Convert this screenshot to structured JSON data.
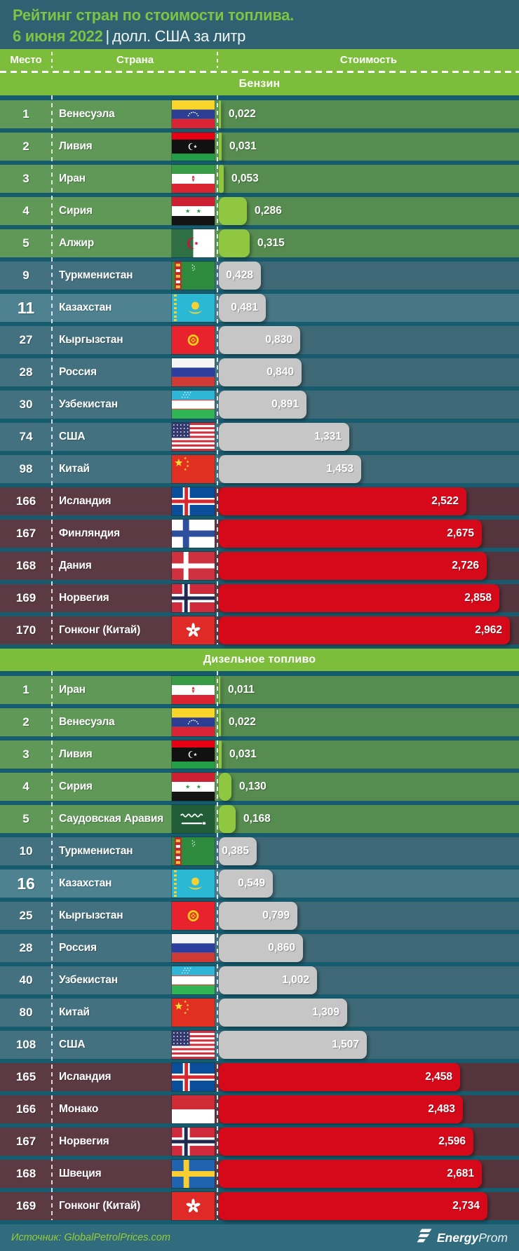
{
  "header": {
    "title": "Рейтинг стран по стоимости топлива.",
    "date": "6 июня 2022",
    "pipe": "|",
    "units": "долл. США за литр"
  },
  "columns": {
    "place": "Место",
    "country": "Страна",
    "value": "Стоимость"
  },
  "colors": {
    "accent_green": "#7CBE3C",
    "bar_green": "#8FC740",
    "bar_gray": "#C6C6C6",
    "bar_red": "#D5091A",
    "row_top": "#5F9857",
    "row_mid": "#44717F",
    "row_highlight": "#4E8290",
    "row_bottom": "#5C3A44",
    "background": "#175B6E",
    "title_bg": "#2F6173",
    "footer_bg": "#306C7E"
  },
  "sections": [
    {
      "title": "Бензин",
      "rows": [
        {
          "place": "1",
          "country": "Венесуэла",
          "flag": "ve",
          "value": "0,022",
          "num": 0.022,
          "tier": "top"
        },
        {
          "place": "2",
          "country": "Ливия",
          "flag": "ly",
          "value": "0,031",
          "num": 0.031,
          "tier": "top"
        },
        {
          "place": "3",
          "country": "Иран",
          "flag": "ir",
          "value": "0,053",
          "num": 0.053,
          "tier": "top"
        },
        {
          "place": "4",
          "country": "Сирия",
          "flag": "sy",
          "value": "0,286",
          "num": 0.286,
          "tier": "top"
        },
        {
          "place": "5",
          "country": "Алжир",
          "flag": "dz",
          "value": "0,315",
          "num": 0.315,
          "tier": "top"
        },
        {
          "place": "9",
          "country": "Туркменистан",
          "flag": "tm",
          "value": "0,428",
          "num": 0.428,
          "tier": "mid"
        },
        {
          "place": "11",
          "country": "Казахстан",
          "flag": "kz",
          "value": "0,481",
          "num": 0.481,
          "tier": "highlight"
        },
        {
          "place": "27",
          "country": "Кыргызстан",
          "flag": "kg",
          "value": "0,830",
          "num": 0.83,
          "tier": "mid"
        },
        {
          "place": "28",
          "country": "Россия",
          "flag": "ru",
          "value": "0,840",
          "num": 0.84,
          "tier": "mid"
        },
        {
          "place": "30",
          "country": "Узбекистан",
          "flag": "uz",
          "value": "0,891",
          "num": 0.891,
          "tier": "mid"
        },
        {
          "place": "74",
          "country": "США",
          "flag": "us",
          "value": "1,331",
          "num": 1.331,
          "tier": "mid"
        },
        {
          "place": "98",
          "country": "Китай",
          "flag": "cn",
          "value": "1,453",
          "num": 1.453,
          "tier": "mid"
        },
        {
          "place": "166",
          "country": "Исландия",
          "flag": "is",
          "value": "2,522",
          "num": 2.522,
          "tier": "bottom"
        },
        {
          "place": "167",
          "country": "Финляндия",
          "flag": "fi",
          "value": "2,675",
          "num": 2.675,
          "tier": "bottom"
        },
        {
          "place": "168",
          "country": "Дания",
          "flag": "dk",
          "value": "2,726",
          "num": 2.726,
          "tier": "bottom"
        },
        {
          "place": "169",
          "country": "Норвегия",
          "flag": "no",
          "value": "2,858",
          "num": 2.858,
          "tier": "bottom"
        },
        {
          "place": "170",
          "country": "Гонконг (Китай)",
          "flag": "hk",
          "value": "2,962",
          "num": 2.962,
          "tier": "bottom"
        }
      ]
    },
    {
      "title": "Дизельное топливо",
      "rows": [
        {
          "place": "1",
          "country": "Иран",
          "flag": "ir",
          "value": "0,011",
          "num": 0.011,
          "tier": "top"
        },
        {
          "place": "2",
          "country": "Венесуэла",
          "flag": "ve",
          "value": "0,022",
          "num": 0.022,
          "tier": "top"
        },
        {
          "place": "3",
          "country": "Ливия",
          "flag": "ly",
          "value": "0,031",
          "num": 0.031,
          "tier": "top"
        },
        {
          "place": "4",
          "country": "Сирия",
          "flag": "sy",
          "value": "0,130",
          "num": 0.13,
          "tier": "top"
        },
        {
          "place": "5",
          "country": "Саудовская Аравия",
          "flag": "sa",
          "value": "0,168",
          "num": 0.168,
          "tier": "top"
        },
        {
          "place": "10",
          "country": "Туркменистан",
          "flag": "tm",
          "value": "0,385",
          "num": 0.385,
          "tier": "mid"
        },
        {
          "place": "16",
          "country": "Казахстан",
          "flag": "kz",
          "value": "0,549",
          "num": 0.549,
          "tier": "highlight"
        },
        {
          "place": "25",
          "country": "Кыргызстан",
          "flag": "kg",
          "value": "0,799",
          "num": 0.799,
          "tier": "mid"
        },
        {
          "place": "28",
          "country": "Россия",
          "flag": "ru",
          "value": "0,860",
          "num": 0.86,
          "tier": "mid"
        },
        {
          "place": "40",
          "country": "Узбекистан",
          "flag": "uz",
          "value": "1,002",
          "num": 1.002,
          "tier": "mid"
        },
        {
          "place": "80",
          "country": "Китай",
          "flag": "cn",
          "value": "1,309",
          "num": 1.309,
          "tier": "mid"
        },
        {
          "place": "108",
          "country": "США",
          "flag": "us",
          "value": "1,507",
          "num": 1.507,
          "tier": "mid"
        },
        {
          "place": "165",
          "country": "Исландия",
          "flag": "is",
          "value": "2,458",
          "num": 2.458,
          "tier": "bottom"
        },
        {
          "place": "166",
          "country": "Монако",
          "flag": "mc",
          "value": "2,483",
          "num": 2.483,
          "tier": "bottom"
        },
        {
          "place": "167",
          "country": "Норвегия",
          "flag": "no",
          "value": "2,596",
          "num": 2.596,
          "tier": "bottom"
        },
        {
          "place": "168",
          "country": "Швеция",
          "flag": "se",
          "value": "2,681",
          "num": 2.681,
          "tier": "bottom"
        },
        {
          "place": "169",
          "country": "Гонконг (Китай)",
          "flag": "hk",
          "value": "2,734",
          "num": 2.734,
          "tier": "bottom"
        }
      ]
    }
  ],
  "chart_data": [
    {
      "type": "bar",
      "title": "Бензин",
      "subtitle": "Рейтинг стран по стоимости топлива. 6 июня 2022",
      "ylabel": "долл. США за литр",
      "categories": [
        "Венесуэла",
        "Ливия",
        "Иран",
        "Сирия",
        "Алжир",
        "Туркменистан",
        "Казахстан",
        "Кыргызстан",
        "Россия",
        "Узбекистан",
        "США",
        "Китай",
        "Исландия",
        "Финляндия",
        "Дания",
        "Норвегия",
        "Гонконг (Китай)"
      ],
      "ranks": [
        1,
        2,
        3,
        4,
        5,
        9,
        11,
        27,
        28,
        30,
        74,
        98,
        166,
        167,
        168,
        169,
        170
      ],
      "values": [
        0.022,
        0.031,
        0.053,
        0.286,
        0.315,
        0.428,
        0.481,
        0.83,
        0.84,
        0.891,
        1.331,
        1.453,
        2.522,
        2.675,
        2.726,
        2.858,
        2.962
      ],
      "xlim": [
        0,
        3.0
      ],
      "orientation": "horizontal",
      "legend_position": "none",
      "grid": false
    },
    {
      "type": "bar",
      "title": "Дизельное топливо",
      "subtitle": "Рейтинг стран по стоимости топлива. 6 июня 2022",
      "ylabel": "долл. США за литр",
      "categories": [
        "Иран",
        "Венесуэла",
        "Ливия",
        "Сирия",
        "Саудовская Аравия",
        "Туркменистан",
        "Казахстан",
        "Кыргызстан",
        "Россия",
        "Узбекистан",
        "Китай",
        "США",
        "Исландия",
        "Монако",
        "Норвегия",
        "Швеция",
        "Гонконг (Китай)"
      ],
      "ranks": [
        1,
        2,
        3,
        4,
        5,
        10,
        16,
        25,
        28,
        40,
        80,
        108,
        165,
        166,
        167,
        168,
        169
      ],
      "values": [
        0.011,
        0.022,
        0.031,
        0.13,
        0.168,
        0.385,
        0.549,
        0.799,
        0.86,
        1.002,
        1.309,
        1.507,
        2.458,
        2.483,
        2.596,
        2.681,
        2.734
      ],
      "xlim": [
        0,
        3.0
      ],
      "orientation": "horizontal",
      "legend_position": "none",
      "grid": false
    }
  ],
  "footer": {
    "source": "Источник: GlobalPetrolPrices.com",
    "brand_bold": "Energy",
    "brand_light": "Prom"
  }
}
